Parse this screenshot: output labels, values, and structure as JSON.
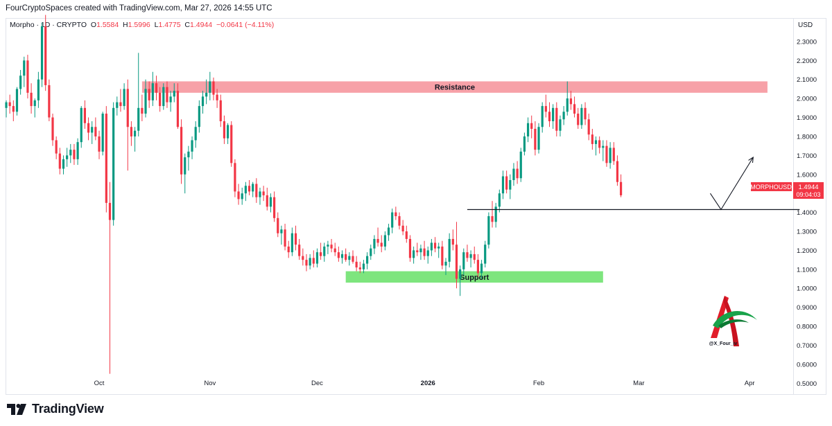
{
  "credit": "FourCryptoSpaces created with TradingView.com, Mar 27, 2026 14:55 UTC",
  "legend": {
    "symbol": "Morpho · 1D · CRYPTO",
    "open_label": "O",
    "open": "1.5584",
    "high_label": "H",
    "high": "1.5996",
    "low_label": "L",
    "low": "1.4775",
    "close_label": "C",
    "close": "1.4944",
    "change": "−0.0641 (−4.11%)"
  },
  "price_axis": {
    "currency": "USD"
  },
  "ticker_tag": {
    "label": "MORPHOUSD",
    "price": "1.4944",
    "countdown": "09:04:03"
  },
  "watermark_handle": "@X_Four_iv",
  "footer": {
    "brand": "TradingView"
  },
  "colors": {
    "up": "#089981",
    "down": "#f23645",
    "resistance": "#f7a1a8",
    "support": "#7ee57e",
    "ticker": "#f23645"
  },
  "chart_data": {
    "type": "candlestick",
    "ylim": [
      0.45,
      2.42
    ],
    "y_ticks": [
      0.5,
      0.6,
      0.7,
      0.8,
      0.9,
      1.0,
      1.1,
      1.2,
      1.3,
      1.4,
      1.5,
      1.6,
      1.7,
      1.8,
      1.9,
      2.0,
      2.1,
      2.2,
      2.3
    ],
    "y_tick_labels": [
      "0.5000",
      "0.6000",
      "0.7000",
      "0.8000",
      "0.9000",
      "1.0000",
      "1.1000",
      "1.2000",
      "1.3000",
      "1.4000",
      "1.5000",
      "1.6000",
      "1.7000",
      "1.8000",
      "1.9000",
      "2.0000",
      "2.1000",
      "2.2000",
      "2.3000"
    ],
    "x_labels": [
      {
        "label": "Oct",
        "day": 0
      },
      {
        "label": "Nov",
        "day": 31
      },
      {
        "label": "Dec",
        "day": 61
      },
      {
        "label": "2026",
        "day": 92
      },
      {
        "label": "Feb",
        "day": 123
      },
      {
        "label": "Mar",
        "day": 151
      },
      {
        "label": "Apr",
        "day": 182
      }
    ],
    "x_domain": [
      -26,
      194
    ],
    "zones": [
      {
        "label": "Resistance",
        "from_day": 12,
        "to_day": 187,
        "y_low": 2.03,
        "y_high": 2.09
      },
      {
        "label": "Support",
        "from_day": 69,
        "to_day": 141,
        "y_low": 1.03,
        "y_high": 1.09
      }
    ],
    "horizontal_line": {
      "y": 1.415,
      "from_day": 103,
      "to_day": 196
    },
    "projection": [
      {
        "day": 171,
        "y": 1.5
      },
      {
        "day": 174,
        "y": 1.415
      },
      {
        "day": 183,
        "y": 1.69
      }
    ],
    "candle_start_day": -26,
    "candles": [
      [
        1.95,
        1.99,
        1.9,
        1.98
      ],
      [
        1.98,
        2.02,
        1.92,
        1.96
      ],
      [
        1.96,
        1.99,
        1.88,
        1.93
      ],
      [
        1.93,
        2.06,
        1.91,
        2.05
      ],
      [
        2.05,
        2.15,
        2.02,
        2.12
      ],
      [
        2.12,
        2.22,
        2.06,
        2.2
      ],
      [
        2.2,
        2.23,
        2.0,
        2.03
      ],
      [
        2.03,
        2.08,
        1.92,
        1.96
      ],
      [
        1.96,
        2.0,
        1.9,
        1.99
      ],
      [
        1.99,
        2.14,
        1.95,
        2.1
      ],
      [
        2.1,
        2.4,
        2.06,
        2.38
      ],
      [
        2.38,
        2.44,
        2.04,
        2.07
      ],
      [
        2.07,
        2.1,
        1.88,
        1.9
      ],
      [
        1.9,
        1.92,
        1.75,
        1.78
      ],
      [
        1.78,
        1.8,
        1.68,
        1.71
      ],
      [
        1.71,
        1.74,
        1.6,
        1.63
      ],
      [
        1.63,
        1.7,
        1.6,
        1.68
      ],
      [
        1.68,
        1.74,
        1.64,
        1.7
      ],
      [
        1.7,
        1.76,
        1.66,
        1.73
      ],
      [
        1.73,
        1.76,
        1.65,
        1.68
      ],
      [
        1.68,
        1.79,
        1.65,
        1.77
      ],
      [
        1.77,
        1.96,
        1.74,
        1.95
      ],
      [
        1.95,
        1.99,
        1.84,
        1.87
      ],
      [
        1.87,
        1.9,
        1.78,
        1.82
      ],
      [
        1.82,
        1.88,
        1.76,
        1.85
      ],
      [
        1.85,
        1.9,
        1.78,
        1.8
      ],
      [
        1.8,
        1.83,
        1.68,
        1.72
      ],
      [
        1.72,
        1.93,
        1.7,
        1.92
      ],
      [
        1.92,
        1.96,
        1.4,
        1.45
      ],
      [
        1.45,
        1.56,
        0.55,
        1.36
      ],
      [
        1.36,
        1.98,
        1.33,
        1.95
      ],
      [
        1.95,
        2.01,
        1.91,
        1.98
      ],
      [
        1.98,
        2.05,
        1.93,
        1.96
      ],
      [
        1.96,
        2.08,
        1.94,
        2.05
      ],
      [
        2.05,
        2.1,
        1.62,
        1.85
      ],
      [
        1.85,
        1.88,
        1.75,
        1.8
      ],
      [
        1.8,
        1.85,
        1.72,
        1.83
      ],
      [
        1.83,
        2.24,
        1.8,
        1.95
      ],
      [
        1.95,
        2.02,
        1.88,
        1.92
      ],
      [
        1.92,
        2.1,
        1.9,
        2.05
      ],
      [
        2.05,
        2.09,
        1.95,
        1.99
      ],
      [
        1.99,
        2.14,
        1.96,
        2.08
      ],
      [
        2.08,
        2.12,
        1.99,
        2.03
      ],
      [
        2.03,
        2.06,
        1.93,
        1.96
      ],
      [
        1.96,
        2.08,
        1.94,
        2.06
      ],
      [
        2.06,
        2.09,
        1.95,
        1.98
      ],
      [
        1.98,
        2.04,
        1.93,
        2.01
      ],
      [
        2.01,
        2.08,
        1.98,
        2.04
      ],
      [
        2.04,
        2.08,
        1.84,
        1.85
      ],
      [
        1.85,
        1.89,
        1.55,
        1.6
      ],
      [
        1.6,
        1.71,
        1.5,
        1.69
      ],
      [
        1.69,
        1.75,
        1.62,
        1.72
      ],
      [
        1.72,
        1.8,
        1.68,
        1.78
      ],
      [
        1.78,
        1.88,
        1.74,
        1.85
      ],
      [
        1.85,
        1.99,
        1.82,
        1.96
      ],
      [
        1.96,
        2.04,
        1.92,
        2.01
      ],
      [
        2.01,
        2.1,
        1.97,
        2.03
      ],
      [
        2.03,
        2.14,
        1.99,
        2.09
      ],
      [
        2.09,
        2.11,
        1.99,
        2.02
      ],
      [
        2.02,
        2.05,
        1.95,
        1.99
      ],
      [
        1.99,
        2.02,
        1.85,
        1.88
      ],
      [
        1.88,
        1.91,
        1.76,
        1.79
      ],
      [
        1.79,
        1.87,
        1.76,
        1.86
      ],
      [
        1.86,
        1.88,
        1.64,
        1.66
      ],
      [
        1.66,
        1.68,
        1.48,
        1.51
      ],
      [
        1.51,
        1.55,
        1.44,
        1.47
      ],
      [
        1.47,
        1.53,
        1.44,
        1.5
      ],
      [
        1.5,
        1.56,
        1.46,
        1.54
      ],
      [
        1.54,
        1.57,
        1.49,
        1.51
      ],
      [
        1.51,
        1.56,
        1.48,
        1.55
      ],
      [
        1.55,
        1.58,
        1.45,
        1.48
      ],
      [
        1.48,
        1.53,
        1.44,
        1.51
      ],
      [
        1.51,
        1.54,
        1.46,
        1.49
      ],
      [
        1.49,
        1.53,
        1.41,
        1.43
      ],
      [
        1.43,
        1.5,
        1.4,
        1.48
      ],
      [
        1.48,
        1.51,
        1.35,
        1.37
      ],
      [
        1.37,
        1.4,
        1.27,
        1.29
      ],
      [
        1.29,
        1.33,
        1.23,
        1.31
      ],
      [
        1.31,
        1.34,
        1.2,
        1.22
      ],
      [
        1.22,
        1.25,
        1.16,
        1.19
      ],
      [
        1.19,
        1.32,
        1.17,
        1.29
      ],
      [
        1.29,
        1.33,
        1.2,
        1.23
      ],
      [
        1.23,
        1.26,
        1.15,
        1.17
      ],
      [
        1.17,
        1.21,
        1.12,
        1.15
      ],
      [
        1.15,
        1.18,
        1.09,
        1.12
      ],
      [
        1.12,
        1.18,
        1.1,
        1.16
      ],
      [
        1.16,
        1.2,
        1.11,
        1.13
      ],
      [
        1.13,
        1.21,
        1.11,
        1.19
      ],
      [
        1.19,
        1.24,
        1.15,
        1.17
      ],
      [
        1.17,
        1.24,
        1.14,
        1.22
      ],
      [
        1.22,
        1.25,
        1.18,
        1.23
      ],
      [
        1.23,
        1.26,
        1.19,
        1.21
      ],
      [
        1.21,
        1.24,
        1.17,
        1.19
      ],
      [
        1.19,
        1.22,
        1.14,
        1.16
      ],
      [
        1.16,
        1.2,
        1.13,
        1.18
      ],
      [
        1.18,
        1.21,
        1.14,
        1.15
      ],
      [
        1.15,
        1.19,
        1.12,
        1.17
      ],
      [
        1.17,
        1.2,
        1.13,
        1.14
      ],
      [
        1.14,
        1.17,
        1.09,
        1.11
      ],
      [
        1.11,
        1.14,
        1.08,
        1.1
      ],
      [
        1.1,
        1.15,
        1.08,
        1.13
      ],
      [
        1.13,
        1.19,
        1.1,
        1.17
      ],
      [
        1.17,
        1.23,
        1.15,
        1.21
      ],
      [
        1.21,
        1.28,
        1.18,
        1.26
      ],
      [
        1.26,
        1.32,
        1.22,
        1.24
      ],
      [
        1.24,
        1.28,
        1.19,
        1.22
      ],
      [
        1.22,
        1.3,
        1.2,
        1.28
      ],
      [
        1.28,
        1.34,
        1.25,
        1.32
      ],
      [
        1.32,
        1.42,
        1.29,
        1.4
      ],
      [
        1.4,
        1.43,
        1.36,
        1.38
      ],
      [
        1.38,
        1.4,
        1.31,
        1.33
      ],
      [
        1.33,
        1.36,
        1.28,
        1.3
      ],
      [
        1.3,
        1.33,
        1.24,
        1.26
      ],
      [
        1.26,
        1.28,
        1.14,
        1.16
      ],
      [
        1.16,
        1.22,
        1.13,
        1.2
      ],
      [
        1.2,
        1.24,
        1.17,
        1.19
      ],
      [
        1.19,
        1.23,
        1.15,
        1.21
      ],
      [
        1.21,
        1.25,
        1.15,
        1.17
      ],
      [
        1.17,
        1.22,
        1.13,
        1.2
      ],
      [
        1.2,
        1.26,
        1.17,
        1.24
      ],
      [
        1.24,
        1.27,
        1.19,
        1.21
      ],
      [
        1.21,
        1.24,
        1.16,
        1.22
      ],
      [
        1.22,
        1.25,
        1.1,
        1.12
      ],
      [
        1.12,
        1.16,
        1.07,
        1.14
      ],
      [
        1.14,
        1.29,
        1.11,
        1.26
      ],
      [
        1.26,
        1.31,
        1.2,
        1.23
      ],
      [
        1.23,
        1.35,
        1.0,
        1.05
      ],
      [
        1.05,
        1.12,
        0.96,
        1.1
      ],
      [
        1.1,
        1.21,
        1.07,
        1.19
      ],
      [
        1.19,
        1.23,
        1.14,
        1.16
      ],
      [
        1.16,
        1.2,
        1.11,
        1.18
      ],
      [
        1.18,
        1.22,
        1.13,
        1.15
      ],
      [
        1.15,
        1.18,
        1.06,
        1.08
      ],
      [
        1.08,
        1.15,
        1.05,
        1.13
      ],
      [
        1.13,
        1.25,
        1.11,
        1.23
      ],
      [
        1.23,
        1.4,
        1.21,
        1.38
      ],
      [
        1.38,
        1.46,
        1.32,
        1.35
      ],
      [
        1.35,
        1.45,
        1.32,
        1.43
      ],
      [
        1.43,
        1.52,
        1.4,
        1.5
      ],
      [
        1.5,
        1.62,
        1.47,
        1.59
      ],
      [
        1.59,
        1.62,
        1.5,
        1.52
      ],
      [
        1.52,
        1.6,
        1.47,
        1.57
      ],
      [
        1.57,
        1.66,
        1.54,
        1.63
      ],
      [
        1.63,
        1.67,
        1.55,
        1.58
      ],
      [
        1.58,
        1.74,
        1.56,
        1.72
      ],
      [
        1.72,
        1.82,
        1.7,
        1.8
      ],
      [
        1.8,
        1.9,
        1.77,
        1.87
      ],
      [
        1.87,
        1.91,
        1.79,
        1.84
      ],
      [
        1.84,
        1.88,
        1.7,
        1.73
      ],
      [
        1.73,
        1.87,
        1.71,
        1.85
      ],
      [
        1.85,
        1.98,
        1.82,
        1.96
      ],
      [
        1.96,
        2.02,
        1.9,
        1.93
      ],
      [
        1.93,
        1.98,
        1.85,
        1.88
      ],
      [
        1.88,
        1.97,
        1.84,
        1.95
      ],
      [
        1.95,
        1.98,
        1.8,
        1.83
      ],
      [
        1.83,
        1.91,
        1.8,
        1.89
      ],
      [
        1.89,
        1.96,
        1.86,
        1.93
      ],
      [
        1.93,
        2.09,
        1.91,
        2.0
      ],
      [
        2.0,
        2.04,
        1.94,
        1.97
      ],
      [
        1.97,
        2.01,
        1.9,
        1.92
      ],
      [
        1.92,
        1.95,
        1.84,
        1.86
      ],
      [
        1.86,
        1.97,
        1.84,
        1.95
      ],
      [
        1.95,
        1.98,
        1.86,
        1.89
      ],
      [
        1.89,
        1.92,
        1.78,
        1.81
      ],
      [
        1.81,
        1.84,
        1.73,
        1.76
      ],
      [
        1.76,
        1.8,
        1.7,
        1.78
      ],
      [
        1.78,
        1.8,
        1.71,
        1.74
      ],
      [
        1.74,
        1.78,
        1.67,
        1.75
      ],
      [
        1.75,
        1.78,
        1.64,
        1.66
      ],
      [
        1.66,
        1.77,
        1.63,
        1.74
      ],
      [
        1.74,
        1.77,
        1.65,
        1.67
      ],
      [
        1.67,
        1.7,
        1.54,
        1.56
      ],
      [
        1.56,
        1.6,
        1.48,
        1.49
      ]
    ]
  }
}
